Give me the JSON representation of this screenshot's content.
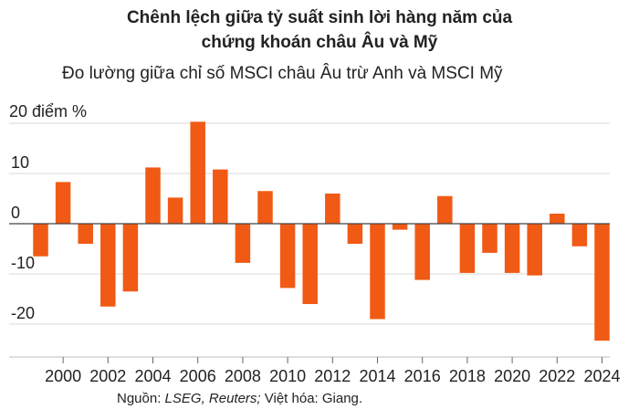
{
  "title_line1": "Chênh lệch giữa tỷ suất sinh lời hàng năm của",
  "title_line2": "chứng khoán châu Âu và Mỹ",
  "subtitle": "Đo lường giữa chỉ số MSCI châu Âu trừ Anh và MSCI Mỹ",
  "source": {
    "prefix": "Nguồn: ",
    "italic": "LSEG, Reuters;",
    "suffix": " Việt hóa: Giang."
  },
  "colors": {
    "bar": "#f05a14",
    "grid": "#d9d9d9",
    "axis": "#444444"
  },
  "chart_data": {
    "type": "bar",
    "ylabel": "20 điểm %",
    "ylim": [
      -25,
      22
    ],
    "yticks": [
      20,
      10,
      0,
      -10,
      -20
    ],
    "ytick_labels": [
      "",
      "10",
      "0",
      "-10",
      "-20"
    ],
    "categories": [
      1999,
      2000,
      2001,
      2002,
      2003,
      2004,
      2005,
      2006,
      2007,
      2008,
      2009,
      2010,
      2011,
      2012,
      2013,
      2014,
      2015,
      2016,
      2017,
      2018,
      2019,
      2020,
      2021,
      2022,
      2023,
      2024
    ],
    "xtick_labels": [
      "2000",
      "2002",
      "2004",
      "2006",
      "2008",
      "2010",
      "2012",
      "2014",
      "2016",
      "2018",
      "2020",
      "2022",
      "2024"
    ],
    "values": [
      -6.5,
      8.3,
      -4.0,
      -16.5,
      -13.5,
      11.2,
      5.2,
      20.3,
      10.8,
      -7.8,
      6.5,
      -12.8,
      -16.0,
      6.0,
      -4.0,
      -19.0,
      -1.2,
      -11.2,
      5.5,
      -9.8,
      -5.8,
      -9.8,
      -10.3,
      2.0,
      -4.5,
      -23.3
    ],
    "grid": true,
    "legend": "none"
  }
}
